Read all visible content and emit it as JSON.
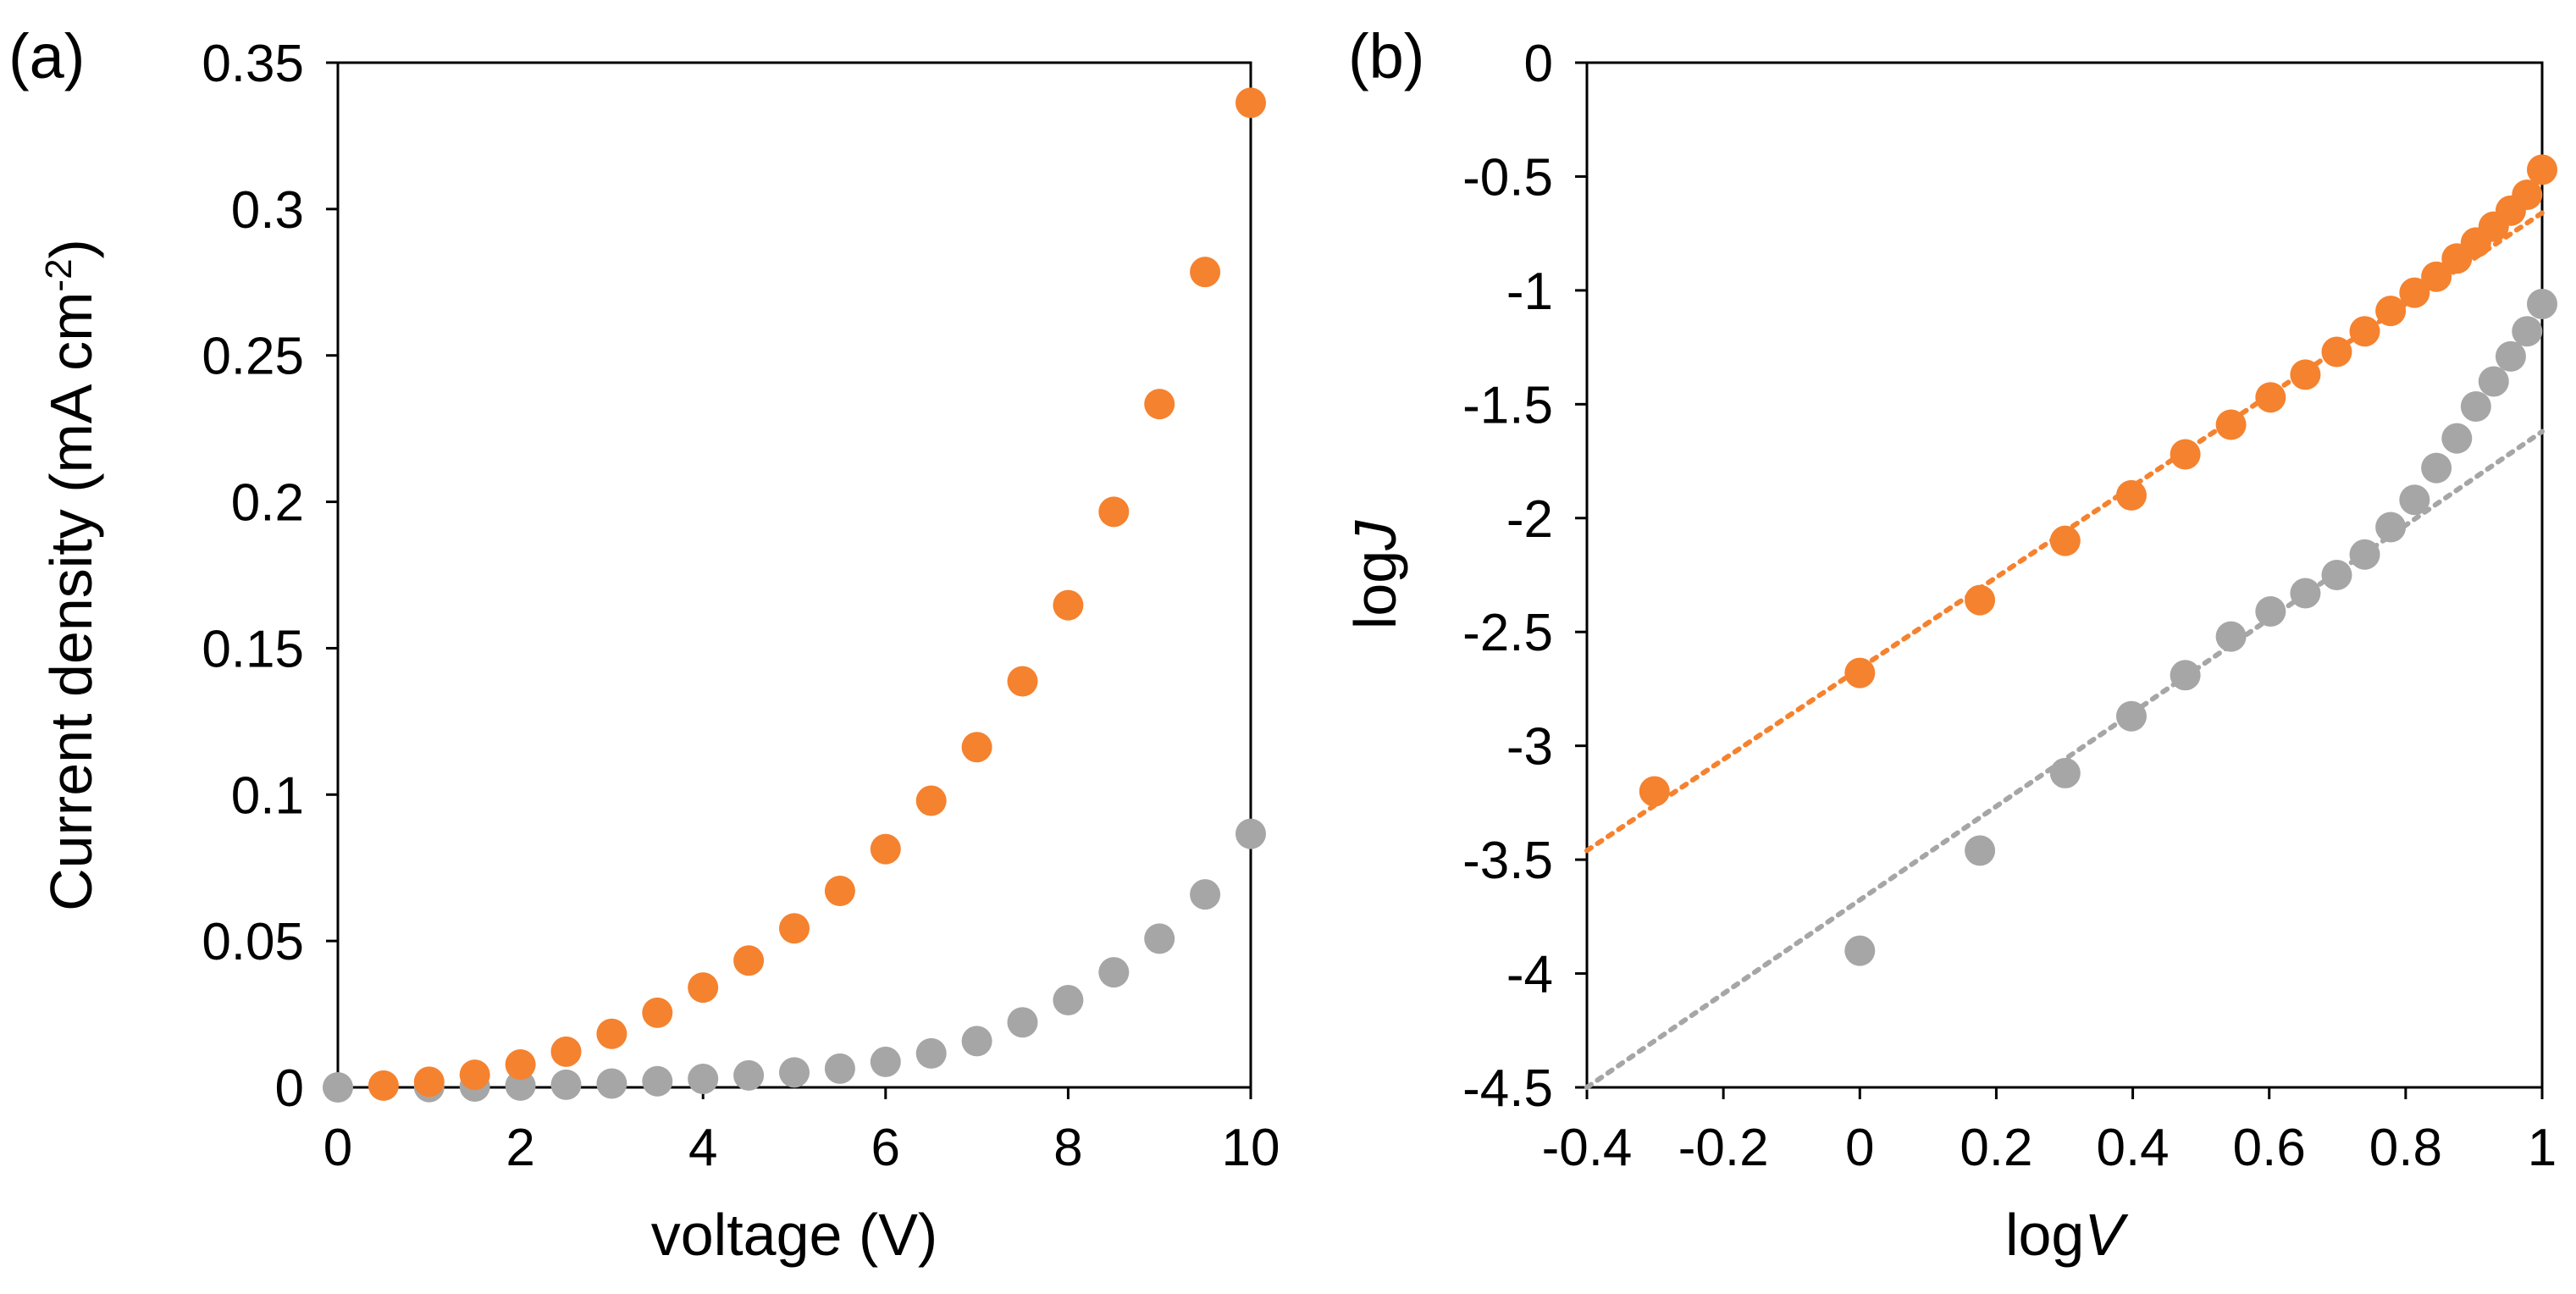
{
  "chart_data": [
    {
      "type": "scatter",
      "panel_label": "(a)",
      "xlabel": "voltage (V)",
      "ylabel_main": "Current density (mA cm",
      "ylabel_sup": "-2",
      "ylabel_end": ")",
      "xlim": [
        0,
        10
      ],
      "ylim": [
        0,
        0.35
      ],
      "x_ticks": [
        "0",
        "2",
        "4",
        "6",
        "8",
        "10"
      ],
      "y_ticks": [
        "0",
        "0.05",
        "0.1",
        "0.15",
        "0.2",
        "0.25",
        "0.3",
        "0.35"
      ],
      "grid": false,
      "series": [
        {
          "color": "#F5822F",
          "points": [
            [
              0.5,
              0.0006
            ],
            [
              1,
              0.0019
            ],
            [
              1.5,
              0.0043
            ],
            [
              2,
              0.0078
            ],
            [
              2.5,
              0.0122
            ],
            [
              3,
              0.0183
            ],
            [
              3.5,
              0.0255
            ],
            [
              4,
              0.0341
            ],
            [
              4.5,
              0.0433
            ],
            [
              5,
              0.0543
            ],
            [
              5.5,
              0.0671
            ],
            [
              6,
              0.0814
            ],
            [
              6.5,
              0.0979
            ],
            [
              7,
              0.1162
            ],
            [
              7.5,
              0.1387
            ],
            [
              8,
              0.1647
            ],
            [
              8.5,
              0.1966
            ],
            [
              9,
              0.2334
            ],
            [
              9.5,
              0.2785
            ],
            [
              10,
              0.3363
            ]
          ]
        },
        {
          "color": "#A6A6A6",
          "points": [
            [
              0,
              0
            ],
            [
              1,
              0.0001
            ],
            [
              1.5,
              0.0003
            ],
            [
              2,
              0.0006
            ],
            [
              2.5,
              0.0009
            ],
            [
              3,
              0.0013
            ],
            [
              3.5,
              0.0021
            ],
            [
              4,
              0.0029
            ],
            [
              4.5,
              0.0041
            ],
            [
              5,
              0.0051
            ],
            [
              5.5,
              0.0064
            ],
            [
              6,
              0.0087
            ],
            [
              6.5,
              0.0116
            ],
            [
              7,
              0.0158
            ],
            [
              7.5,
              0.0222
            ],
            [
              8,
              0.0298
            ],
            [
              8.5,
              0.0393
            ],
            [
              9,
              0.0508
            ],
            [
              9.5,
              0.0659
            ],
            [
              10,
              0.0866
            ]
          ]
        }
      ]
    },
    {
      "type": "scatter",
      "panel_label": "(b)",
      "xlabel_plain": "log",
      "xlabel_italic": "V",
      "ylabel_plain": "log",
      "ylabel_italic": "J",
      "xlim": [
        -0.4,
        1
      ],
      "ylim": [
        -4.5,
        0
      ],
      "x_ticks": [
        "-0.4",
        "-0.2",
        "0",
        "0.2",
        "0.4",
        "0.6",
        "0.8",
        "1"
      ],
      "y_ticks": [
        "-4.5",
        "-4",
        "-3.5",
        "-3",
        "-2.5",
        "-2",
        "-1.5",
        "-1",
        "-0.5",
        "0"
      ],
      "grid": false,
      "series": [
        {
          "color": "#F5822F",
          "points": [
            [
              -0.301,
              -3.2
            ],
            [
              0,
              -2.68
            ],
            [
              0.176,
              -2.36
            ],
            [
              0.301,
              -2.1
            ],
            [
              0.398,
              -1.9
            ],
            [
              0.477,
              -1.72
            ],
            [
              0.544,
              -1.59
            ],
            [
              0.602,
              -1.47
            ],
            [
              0.653,
              -1.37
            ],
            [
              0.699,
              -1.27
            ],
            [
              0.74,
              -1.18
            ],
            [
              0.778,
              -1.09
            ],
            [
              0.813,
              -1.01
            ],
            [
              0.845,
              -0.94
            ],
            [
              0.875,
              -0.86
            ],
            [
              0.903,
              -0.79
            ],
            [
              0.929,
              -0.72
            ],
            [
              0.954,
              -0.65
            ],
            [
              0.978,
              -0.58
            ],
            [
              1,
              -0.47
            ]
          ],
          "trendline": [
            [
              -0.4,
              -3.46
            ],
            [
              1,
              -0.66
            ]
          ]
        },
        {
          "color": "#A6A6A6",
          "points": [
            [
              0,
              -3.9
            ],
            [
              0.176,
              -3.46
            ],
            [
              0.301,
              -3.12
            ],
            [
              0.398,
              -2.87
            ],
            [
              0.477,
              -2.69
            ],
            [
              0.544,
              -2.52
            ],
            [
              0.602,
              -2.41
            ],
            [
              0.653,
              -2.33
            ],
            [
              0.699,
              -2.25
            ],
            [
              0.74,
              -2.16
            ],
            [
              0.778,
              -2.04
            ],
            [
              0.813,
              -1.92
            ],
            [
              0.845,
              -1.78
            ],
            [
              0.875,
              -1.65
            ],
            [
              0.903,
              -1.51
            ],
            [
              0.929,
              -1.4
            ],
            [
              0.954,
              -1.29
            ],
            [
              0.978,
              -1.18
            ],
            [
              1,
              -1.06
            ]
          ],
          "trendline": [
            [
              -0.4,
              -4.5
            ],
            [
              1,
              -1.62
            ]
          ]
        }
      ]
    }
  ]
}
